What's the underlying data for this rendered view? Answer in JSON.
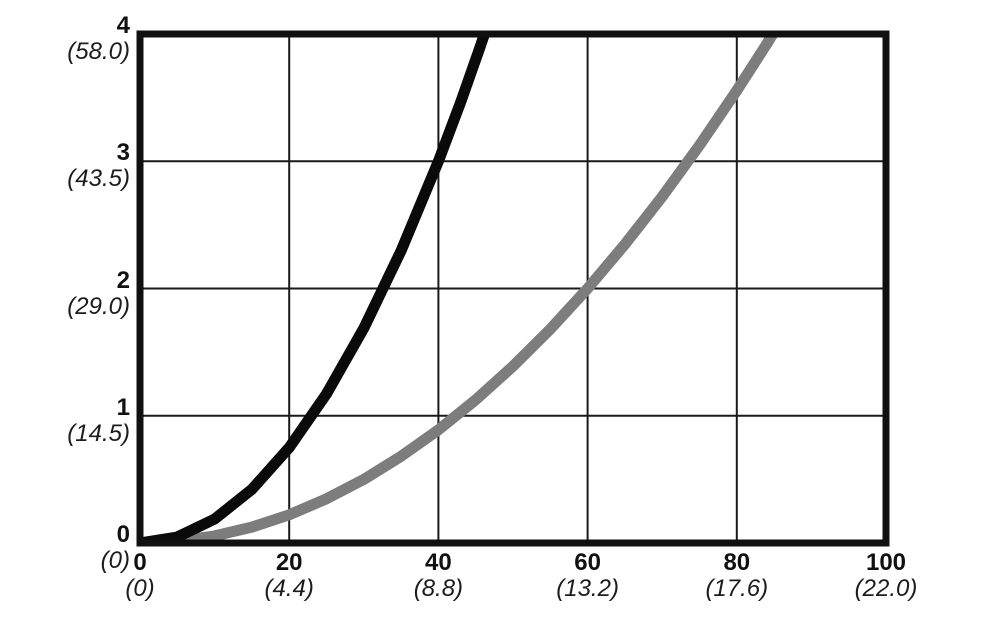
{
  "chart_data": {
    "type": "line",
    "title": "",
    "xlabel": "",
    "ylabel": "",
    "xlim": [
      0,
      100
    ],
    "ylim": [
      0,
      4
    ],
    "grid": true,
    "legend": "none",
    "frame_color": "#101010",
    "grid_color": "#1a1a1a",
    "background_color": "#ffffff",
    "x_ticks": [
      {
        "value": 0,
        "label": "0",
        "alt": "(0)"
      },
      {
        "value": 20,
        "label": "20",
        "alt": "(4.4)"
      },
      {
        "value": 40,
        "label": "40",
        "alt": "(8.8)"
      },
      {
        "value": 60,
        "label": "60",
        "alt": "(13.2)"
      },
      {
        "value": 80,
        "label": "80",
        "alt": "(17.6)"
      },
      {
        "value": 100,
        "label": "100",
        "alt": "(22.0)"
      }
    ],
    "y_ticks": [
      {
        "value": 0,
        "label": "0",
        "alt": "(0)"
      },
      {
        "value": 1,
        "label": "1",
        "alt": "(14.5)"
      },
      {
        "value": 2,
        "label": "2",
        "alt": "(29.0)"
      },
      {
        "value": 3,
        "label": "3",
        "alt": "(43.5)"
      },
      {
        "value": 4,
        "label": "4",
        "alt": "(58.0)"
      }
    ],
    "series": [
      {
        "name": "gray-curve",
        "color": "#7d7d7d",
        "stroke_width": 11,
        "points": [
          [
            0,
            0
          ],
          [
            5,
            0.014
          ],
          [
            10,
            0.056
          ],
          [
            15,
            0.125
          ],
          [
            20,
            0.222
          ],
          [
            25,
            0.347
          ],
          [
            30,
            0.5
          ],
          [
            35,
            0.681
          ],
          [
            40,
            0.889
          ],
          [
            45,
            1.125
          ],
          [
            50,
            1.389
          ],
          [
            55,
            1.681
          ],
          [
            60,
            2.0
          ],
          [
            65,
            2.347
          ],
          [
            70,
            2.722
          ],
          [
            75,
            3.125
          ],
          [
            80,
            3.556
          ],
          [
            84,
            3.92
          ],
          [
            86.5,
            4.16
          ]
        ]
      },
      {
        "name": "black-curve",
        "color": "#0a0a0a",
        "stroke_width": 11,
        "points": [
          [
            0,
            0
          ],
          [
            5,
            0.047
          ],
          [
            10,
            0.188
          ],
          [
            15,
            0.422
          ],
          [
            20,
            0.75
          ],
          [
            25,
            1.172
          ],
          [
            30,
            1.688
          ],
          [
            35,
            2.297
          ],
          [
            40,
            3.0
          ],
          [
            43,
            3.467
          ],
          [
            45.5,
            3.883
          ],
          [
            47,
            4.14
          ]
        ]
      }
    ]
  }
}
